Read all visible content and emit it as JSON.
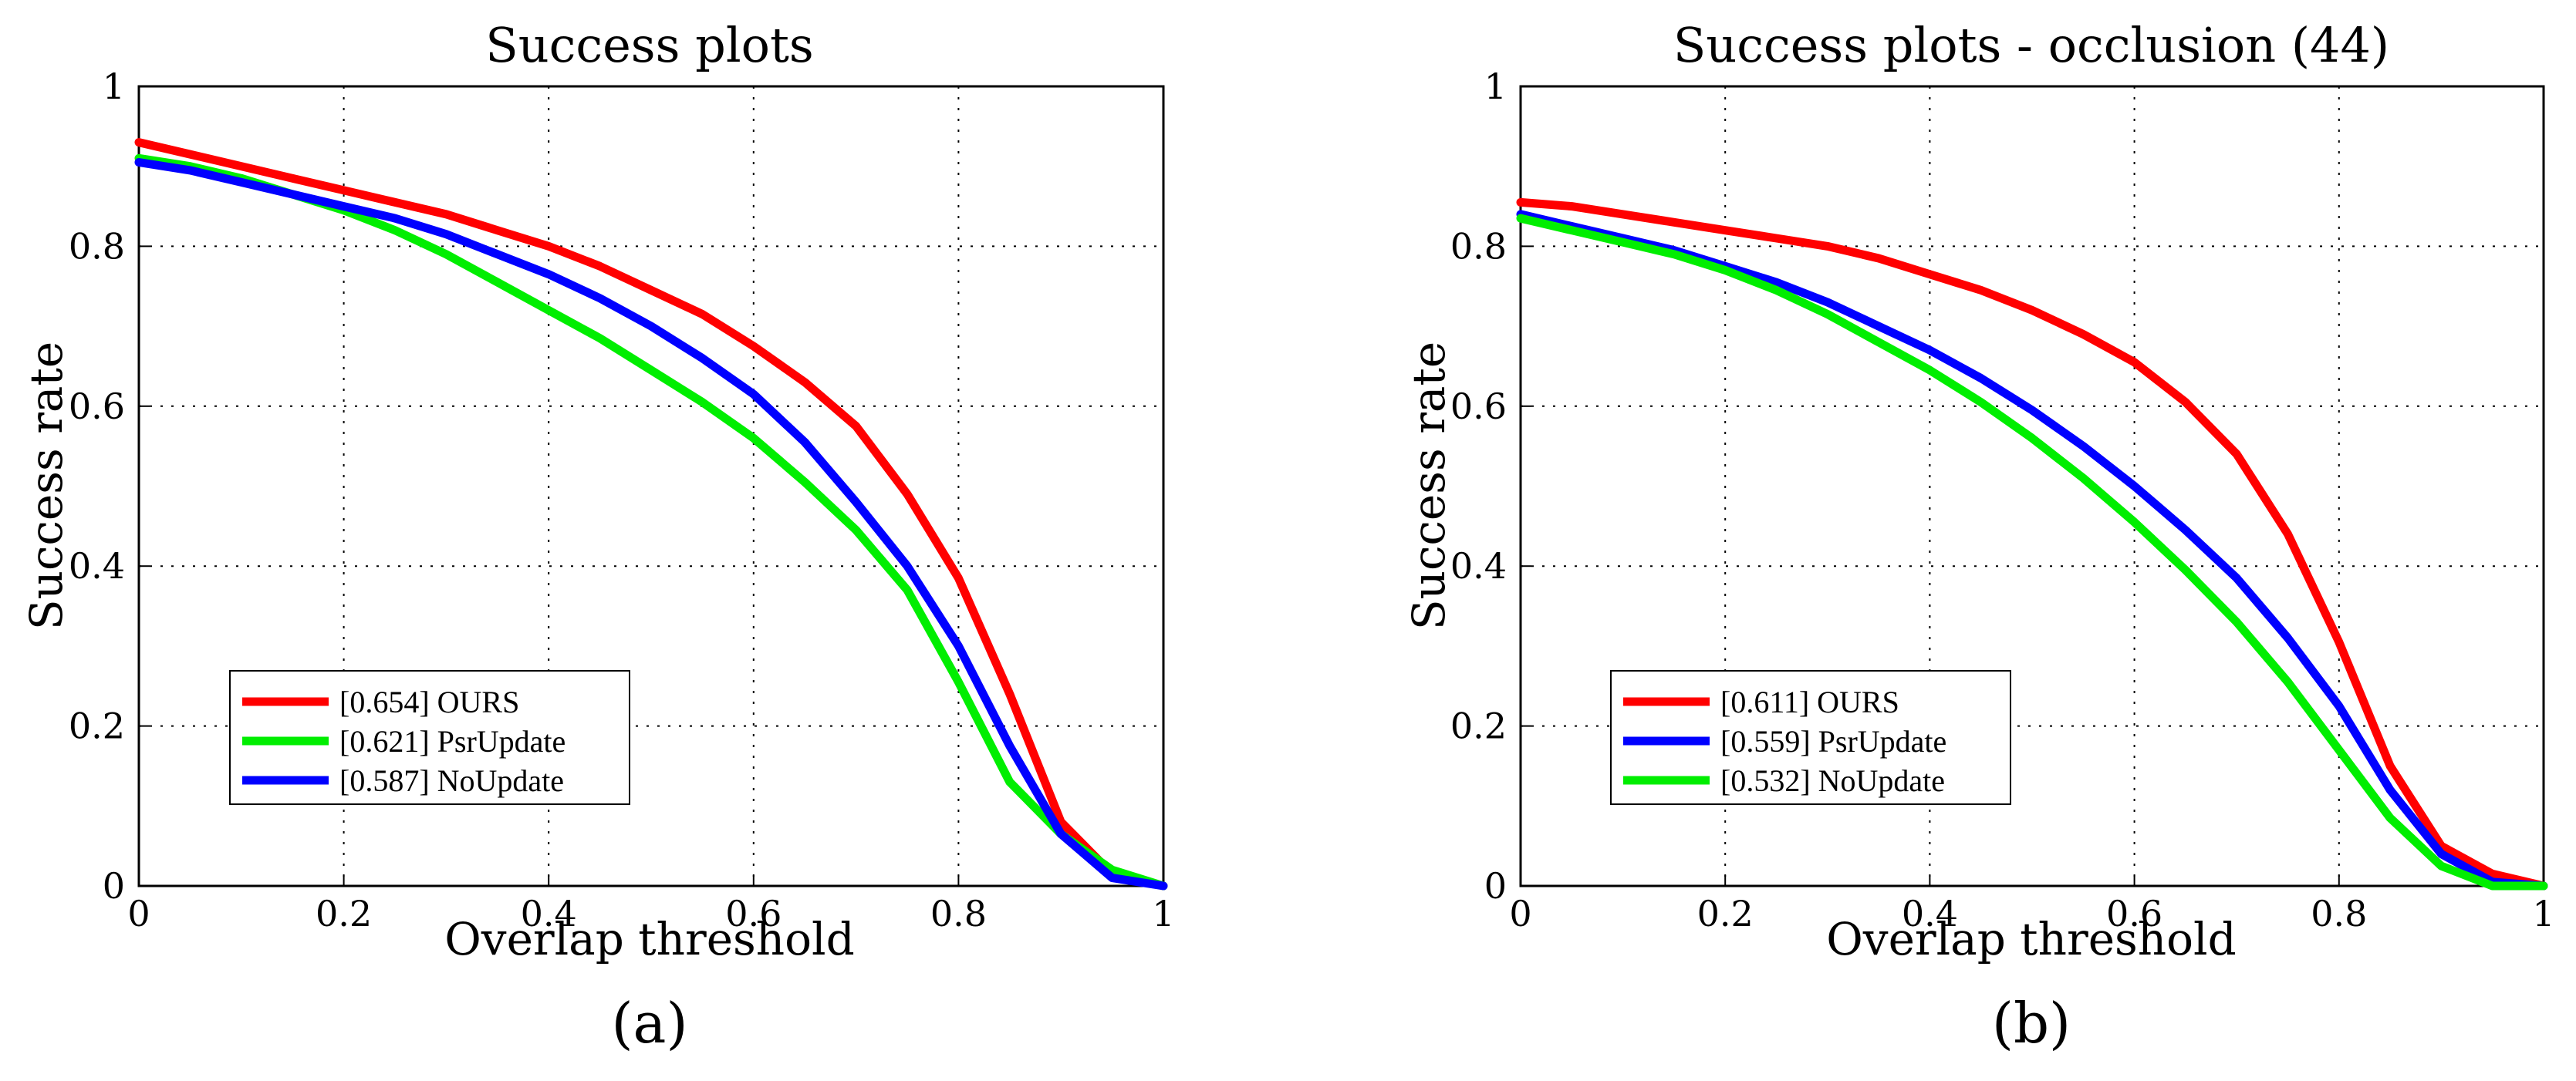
{
  "chart_data": [
    {
      "type": "line",
      "title": "Success plots",
      "xlabel": "Overlap threshold",
      "ylabel": "Success rate",
      "xlim": [
        0,
        1
      ],
      "ylim": [
        0,
        1
      ],
      "grid": true,
      "x_ticks": [
        "0",
        "0.2",
        "0.4",
        "0.6",
        "0.8",
        "1"
      ],
      "y_ticks": [
        "0",
        "0.2",
        "0.4",
        "0.6",
        "0.8",
        "1"
      ],
      "panel_label": "(a)",
      "legend_position": "lower-left",
      "series": [
        {
          "name": "[0.654] OURS",
          "color": "#ff0000",
          "x": [
            0,
            0.05,
            0.1,
            0.15,
            0.2,
            0.25,
            0.3,
            0.35,
            0.4,
            0.45,
            0.5,
            0.55,
            0.6,
            0.65,
            0.7,
            0.75,
            0.8,
            0.85,
            0.9,
            0.95,
            1.0
          ],
          "y": [
            0.93,
            0.915,
            0.9,
            0.885,
            0.87,
            0.855,
            0.84,
            0.82,
            0.8,
            0.775,
            0.745,
            0.715,
            0.675,
            0.63,
            0.575,
            0.49,
            0.385,
            0.24,
            0.08,
            0.015,
            0.0
          ]
        },
        {
          "name": "[0.621] PsrUpdate",
          "color": "#00ee00",
          "x": [
            0,
            0.05,
            0.1,
            0.15,
            0.2,
            0.25,
            0.3,
            0.35,
            0.4,
            0.45,
            0.5,
            0.55,
            0.6,
            0.65,
            0.7,
            0.75,
            0.8,
            0.85,
            0.9,
            0.95,
            1.0
          ],
          "y": [
            0.91,
            0.9,
            0.885,
            0.865,
            0.845,
            0.82,
            0.79,
            0.755,
            0.72,
            0.685,
            0.645,
            0.605,
            0.56,
            0.505,
            0.445,
            0.37,
            0.255,
            0.13,
            0.065,
            0.02,
            0.0
          ]
        },
        {
          "name": "[0.587] NoUpdate",
          "color": "#0000ff",
          "x": [
            0,
            0.05,
            0.1,
            0.15,
            0.2,
            0.25,
            0.3,
            0.35,
            0.4,
            0.45,
            0.5,
            0.55,
            0.6,
            0.65,
            0.7,
            0.75,
            0.8,
            0.85,
            0.9,
            0.95,
            1.0
          ],
          "y": [
            0.905,
            0.895,
            0.88,
            0.865,
            0.85,
            0.835,
            0.815,
            0.79,
            0.765,
            0.735,
            0.7,
            0.66,
            0.615,
            0.555,
            0.48,
            0.4,
            0.3,
            0.175,
            0.065,
            0.01,
            0.0
          ]
        }
      ]
    },
    {
      "type": "line",
      "title": "Success plots - occlusion (44)",
      "xlabel": "Overlap threshold",
      "ylabel": "Success rate",
      "xlim": [
        0,
        1
      ],
      "ylim": [
        0,
        1
      ],
      "grid": true,
      "x_ticks": [
        "0",
        "0.2",
        "0.4",
        "0.6",
        "0.8",
        "1"
      ],
      "y_ticks": [
        "0",
        "0.2",
        "0.4",
        "0.6",
        "0.8",
        "1"
      ],
      "panel_label": "(b)",
      "legend_position": "lower-left",
      "series": [
        {
          "name": "[0.611] OURS",
          "color": "#ff0000",
          "x": [
            0,
            0.05,
            0.1,
            0.15,
            0.2,
            0.25,
            0.3,
            0.35,
            0.4,
            0.45,
            0.5,
            0.55,
            0.6,
            0.65,
            0.7,
            0.75,
            0.8,
            0.85,
            0.9,
            0.95,
            1.0
          ],
          "y": [
            0.855,
            0.85,
            0.84,
            0.83,
            0.82,
            0.81,
            0.8,
            0.785,
            0.765,
            0.745,
            0.72,
            0.69,
            0.655,
            0.605,
            0.54,
            0.44,
            0.305,
            0.15,
            0.05,
            0.015,
            0.0
          ]
        },
        {
          "name": "[0.559] PsrUpdate",
          "color": "#0000ff",
          "x": [
            0,
            0.05,
            0.1,
            0.15,
            0.2,
            0.25,
            0.3,
            0.35,
            0.4,
            0.45,
            0.5,
            0.55,
            0.6,
            0.65,
            0.7,
            0.75,
            0.8,
            0.85,
            0.9,
            0.95,
            1.0
          ],
          "y": [
            0.84,
            0.825,
            0.81,
            0.795,
            0.775,
            0.755,
            0.73,
            0.7,
            0.67,
            0.635,
            0.595,
            0.55,
            0.5,
            0.445,
            0.385,
            0.31,
            0.225,
            0.12,
            0.04,
            0.005,
            0.0
          ]
        },
        {
          "name": "[0.532] NoUpdate",
          "color": "#00ee00",
          "x": [
            0,
            0.05,
            0.1,
            0.15,
            0.2,
            0.25,
            0.3,
            0.35,
            0.4,
            0.45,
            0.5,
            0.55,
            0.6,
            0.65,
            0.7,
            0.75,
            0.8,
            0.85,
            0.9,
            0.95,
            1.0
          ],
          "y": [
            0.835,
            0.82,
            0.805,
            0.79,
            0.77,
            0.745,
            0.715,
            0.68,
            0.645,
            0.605,
            0.56,
            0.51,
            0.455,
            0.395,
            0.33,
            0.255,
            0.17,
            0.085,
            0.025,
            0.0,
            0.0
          ]
        }
      ]
    }
  ]
}
